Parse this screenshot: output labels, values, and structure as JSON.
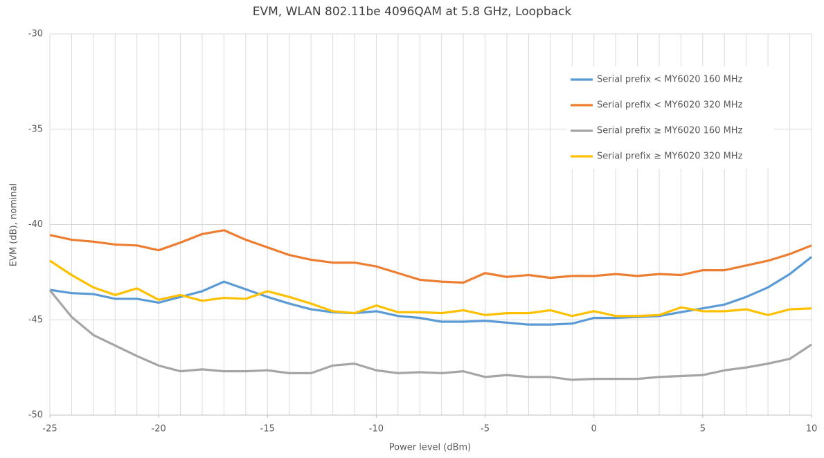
{
  "chart_data": {
    "type": "line",
    "title": "EVM, WLAN 802.11be 4096QAM at 5.8 GHz, Loopback",
    "xlabel": "Power level (dBm)",
    "ylabel": "EVM (dB), nominal",
    "x": [
      -25,
      -24,
      -23,
      -22,
      -21,
      -20,
      -19,
      -18,
      -17,
      -16,
      -15,
      -14,
      -13,
      -12,
      -11,
      -10,
      -9,
      -8,
      -7,
      -6,
      -5,
      -4,
      -3,
      -2,
      -1,
      0,
      1,
      2,
      3,
      4,
      5,
      6,
      7,
      8,
      9,
      10
    ],
    "series": [
      {
        "name": "Serial prefix < MY6020 160 MHz",
        "color": "#5b9bd5",
        "values": [
          -43.43,
          -43.6,
          -43.65,
          -43.9,
          -43.9,
          -44.1,
          -43.8,
          -43.5,
          -43.0,
          -43.4,
          -43.8,
          -44.15,
          -44.45,
          -44.6,
          -44.65,
          -44.55,
          -44.8,
          -44.9,
          -45.1,
          -45.1,
          -45.05,
          -45.15,
          -45.25,
          -45.25,
          -45.2,
          -44.9,
          -44.9,
          -44.85,
          -44.8,
          -44.6,
          -44.4,
          -44.2,
          -43.8,
          -43.3,
          -42.6,
          -41.7
        ]
      },
      {
        "name": "Serial prefix < MY6020 320 MHz",
        "color": "#ed7d31",
        "values": [
          -40.55,
          -40.8,
          -40.9,
          -41.05,
          -41.1,
          -41.35,
          -40.95,
          -40.5,
          -40.3,
          -40.8,
          -41.2,
          -41.6,
          -41.85,
          -42.0,
          -42.0,
          -42.2,
          -42.55,
          -42.9,
          -43.0,
          -43.05,
          -42.55,
          -42.75,
          -42.65,
          -42.8,
          -42.7,
          -42.7,
          -42.6,
          -42.7,
          -42.6,
          -42.65,
          -42.4,
          -42.4,
          -42.15,
          -41.9,
          -41.55,
          -41.1
        ]
      },
      {
        "name": "Serial prefix ≥ MY6020 160 MHz",
        "color": "#a5a5a5",
        "values": [
          -43.45,
          -44.85,
          -45.8,
          -46.35,
          -46.9,
          -47.4,
          -47.7,
          -47.6,
          -47.7,
          -47.7,
          -47.65,
          -47.8,
          -47.8,
          -47.4,
          -47.3,
          -47.65,
          -47.8,
          -47.75,
          -47.8,
          -47.7,
          -48.0,
          -47.9,
          -48.0,
          -48.0,
          -48.15,
          -48.1,
          -48.1,
          -48.1,
          -48.0,
          -47.95,
          -47.9,
          -47.65,
          -47.5,
          -47.3,
          -47.05,
          -46.3
        ]
      },
      {
        "name": "Serial prefix ≥ MY6020 320 MHz",
        "color": "#ffc000",
        "values": [
          -41.9,
          -42.65,
          -43.3,
          -43.7,
          -43.35,
          -43.95,
          -43.7,
          -44.0,
          -43.85,
          -43.9,
          -43.5,
          -43.8,
          -44.15,
          -44.55,
          -44.65,
          -44.25,
          -44.6,
          -44.6,
          -44.65,
          -44.5,
          -44.75,
          -44.65,
          -44.65,
          -44.5,
          -44.8,
          -44.55,
          -44.8,
          -44.8,
          -44.75,
          -44.35,
          -44.55,
          -44.55,
          -44.45,
          -44.75,
          -44.45,
          -44.4
        ]
      }
    ],
    "xlim": [
      -25,
      10
    ],
    "xticks": [
      -25,
      -20,
      -15,
      -10,
      -5,
      0,
      5,
      10
    ],
    "ylim": [
      -50,
      -30
    ],
    "yticks": [
      -50,
      -45,
      -40,
      -35,
      -30
    ],
    "grid": true,
    "legend": "upper right"
  }
}
